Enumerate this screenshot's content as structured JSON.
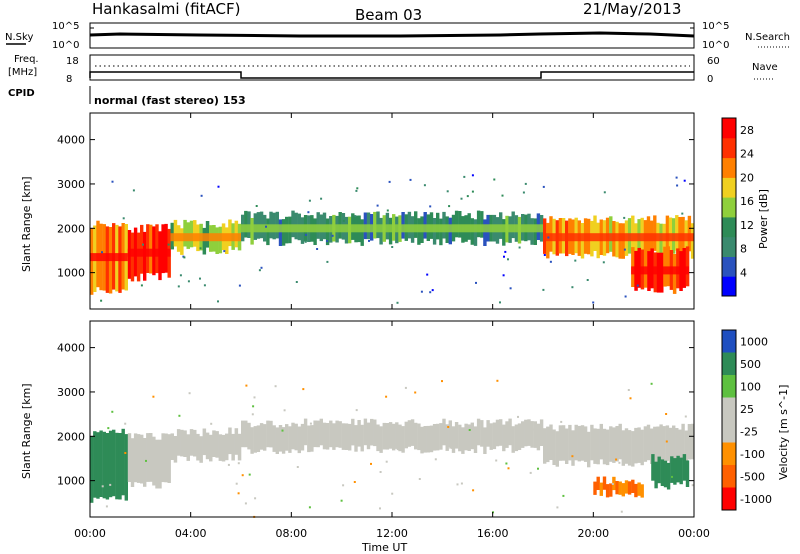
{
  "header": {
    "station": "Hankasalmi (fitACF)",
    "beam": "Beam 03",
    "date": "21/May/2013"
  },
  "top_panels": {
    "nsky_label": "N.Sky",
    "nsearch_label": "N.Search",
    "noise_ticks": [
      "10^5",
      "10^0"
    ],
    "freq_label_1": "Freq.",
    "freq_label_2": "[MHz]",
    "freq_ticks": [
      "18",
      "8"
    ],
    "nave_label": "Nave",
    "nave_ticks": [
      "60",
      "0"
    ],
    "cpid_label": "CPID",
    "cpid_text": "normal (fast stereo) 153"
  },
  "chart_data": [
    {
      "type": "heatmap",
      "title": "",
      "xlabel": "Time UT",
      "ylabel": "Slant Range [km]",
      "x_ticks": [
        "00:00",
        "04:00",
        "08:00",
        "12:00",
        "16:00",
        "20:00",
        "00:00"
      ],
      "xlim_hours": [
        0,
        24
      ],
      "y_ticks": [
        1000,
        2000,
        3000,
        4000
      ],
      "ylim": [
        180,
        4600
      ],
      "colorbar": {
        "label": "Power [dB]",
        "ticks": [
          4,
          8,
          12,
          16,
          20,
          24,
          28
        ],
        "range": [
          0,
          30
        ],
        "colors": [
          "#0000ff",
          "#2a52be",
          "#3a8a6e",
          "#2e8b57",
          "#8fcf3c",
          "#f0d020",
          "#ff8000",
          "#ff3000",
          "#ff0000"
        ]
      },
      "bands": [
        {
          "t_start": 0.0,
          "t_end": 1.5,
          "range_low": 600,
          "range_high": 2100,
          "level": 22
        },
        {
          "t_start": 1.5,
          "t_end": 3.2,
          "range_low": 900,
          "range_high": 2000,
          "level": 26
        },
        {
          "t_start": 3.2,
          "t_end": 6.0,
          "range_low": 1500,
          "range_high": 2100,
          "level": 16
        },
        {
          "t_start": 6.0,
          "t_end": 18.0,
          "range_low": 1700,
          "range_high": 2300,
          "level": 10
        },
        {
          "t_start": 18.0,
          "t_end": 24.0,
          "range_low": 1400,
          "range_high": 2200,
          "level": 20
        },
        {
          "t_start": 21.5,
          "t_end": 23.8,
          "range_low": 600,
          "range_high": 1500,
          "level": 26
        }
      ]
    },
    {
      "type": "heatmap",
      "title": "",
      "xlabel": "Time UT",
      "ylabel": "Slant Range [km]",
      "x_ticks": [
        "00:00",
        "04:00",
        "08:00",
        "12:00",
        "16:00",
        "20:00",
        "00:00"
      ],
      "xlim_hours": [
        0,
        24
      ],
      "y_ticks": [
        1000,
        2000,
        3000,
        4000
      ],
      "ylim": [
        180,
        4600
      ],
      "colorbar": {
        "label": "Velocity [m s^-1]",
        "ticks": [
          1000,
          500,
          100,
          25,
          -25,
          -100,
          -500,
          -1000
        ],
        "colors": [
          "#1f4fc0",
          "#2e8b57",
          "#5ec040",
          "#c8c8c0",
          "#c8c8c0",
          "#ff9000",
          "#ff6000",
          "#ff0000"
        ]
      },
      "bands": [
        {
          "t_start": 0.0,
          "t_end": 1.5,
          "range_low": 600,
          "range_high": 2100,
          "level": 400
        },
        {
          "t_start": 1.5,
          "t_end": 3.2,
          "range_low": 900,
          "range_high": 2000,
          "level": 0
        },
        {
          "t_start": 3.2,
          "t_end": 6.0,
          "range_low": 1500,
          "range_high": 2100,
          "level": 0
        },
        {
          "t_start": 6.0,
          "t_end": 18.0,
          "range_low": 1700,
          "range_high": 2300,
          "level": 0
        },
        {
          "t_start": 18.0,
          "t_end": 24.0,
          "range_low": 1400,
          "range_high": 2200,
          "level": 0
        },
        {
          "t_start": 20.0,
          "t_end": 22.0,
          "range_low": 700,
          "range_high": 1000,
          "level": -300
        },
        {
          "t_start": 22.3,
          "t_end": 23.8,
          "range_low": 900,
          "range_high": 1500,
          "level": 400
        }
      ]
    }
  ]
}
